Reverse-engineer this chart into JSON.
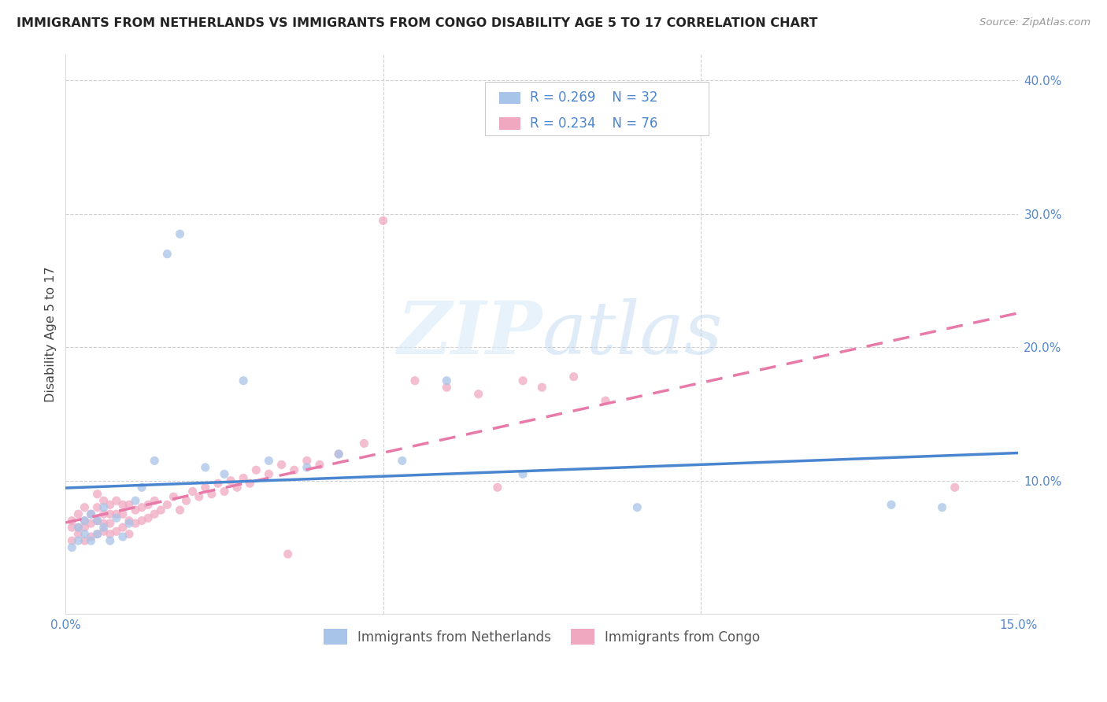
{
  "title": "IMMIGRANTS FROM NETHERLANDS VS IMMIGRANTS FROM CONGO DISABILITY AGE 5 TO 17 CORRELATION CHART",
  "source": "Source: ZipAtlas.com",
  "ylabel": "Disability Age 5 to 17",
  "xlim": [
    0.0,
    0.15
  ],
  "ylim": [
    0.0,
    0.42
  ],
  "netherlands_color": "#a8c4e8",
  "congo_color": "#f0a8c0",
  "netherlands_R": 0.269,
  "netherlands_N": 32,
  "congo_R": 0.234,
  "congo_N": 76,
  "netherlands_line_color": "#4a86d0",
  "congo_line_color": "#e87aaa",
  "legend_text_color": "#4a86d0",
  "right_tick_color": "#4a86d0",
  "watermark_color": "#ccdff5",
  "grid_color": "#d0d0d0",
  "nl_scatter_x": [
    0.001,
    0.002,
    0.002,
    0.003,
    0.003,
    0.004,
    0.004,
    0.005,
    0.005,
    0.006,
    0.006,
    0.007,
    0.008,
    0.009,
    0.01,
    0.011,
    0.012,
    0.014,
    0.016,
    0.018,
    0.022,
    0.025,
    0.028,
    0.032,
    0.038,
    0.043,
    0.053,
    0.06,
    0.072,
    0.09,
    0.13,
    0.138
  ],
  "nl_scatter_y": [
    0.05,
    0.055,
    0.065,
    0.06,
    0.07,
    0.055,
    0.075,
    0.06,
    0.07,
    0.065,
    0.08,
    0.055,
    0.072,
    0.058,
    0.068,
    0.085,
    0.095,
    0.115,
    0.27,
    0.285,
    0.11,
    0.105,
    0.175,
    0.115,
    0.11,
    0.12,
    0.115,
    0.175,
    0.105,
    0.08,
    0.082,
    0.08
  ],
  "cg_scatter_x": [
    0.001,
    0.001,
    0.001,
    0.002,
    0.002,
    0.002,
    0.003,
    0.003,
    0.003,
    0.003,
    0.004,
    0.004,
    0.004,
    0.005,
    0.005,
    0.005,
    0.005,
    0.006,
    0.006,
    0.006,
    0.006,
    0.007,
    0.007,
    0.007,
    0.007,
    0.008,
    0.008,
    0.008,
    0.009,
    0.009,
    0.009,
    0.01,
    0.01,
    0.01,
    0.011,
    0.011,
    0.012,
    0.012,
    0.013,
    0.013,
    0.014,
    0.014,
    0.015,
    0.016,
    0.017,
    0.018,
    0.019,
    0.02,
    0.021,
    0.022,
    0.023,
    0.024,
    0.025,
    0.026,
    0.027,
    0.028,
    0.029,
    0.03,
    0.032,
    0.034,
    0.036,
    0.038,
    0.04,
    0.043,
    0.047,
    0.05,
    0.055,
    0.06,
    0.065,
    0.068,
    0.072,
    0.075,
    0.08,
    0.085,
    0.14,
    0.035
  ],
  "cg_scatter_y": [
    0.055,
    0.065,
    0.07,
    0.06,
    0.065,
    0.075,
    0.055,
    0.065,
    0.07,
    0.08,
    0.058,
    0.068,
    0.075,
    0.06,
    0.07,
    0.08,
    0.09,
    0.062,
    0.068,
    0.075,
    0.085,
    0.06,
    0.068,
    0.075,
    0.082,
    0.062,
    0.075,
    0.085,
    0.065,
    0.075,
    0.082,
    0.06,
    0.07,
    0.082,
    0.068,
    0.078,
    0.07,
    0.08,
    0.072,
    0.082,
    0.075,
    0.085,
    0.078,
    0.082,
    0.088,
    0.078,
    0.085,
    0.092,
    0.088,
    0.095,
    0.09,
    0.098,
    0.092,
    0.1,
    0.095,
    0.102,
    0.098,
    0.108,
    0.105,
    0.112,
    0.108,
    0.115,
    0.112,
    0.12,
    0.128,
    0.295,
    0.175,
    0.17,
    0.165,
    0.095,
    0.175,
    0.17,
    0.178,
    0.16,
    0.095,
    0.045
  ]
}
